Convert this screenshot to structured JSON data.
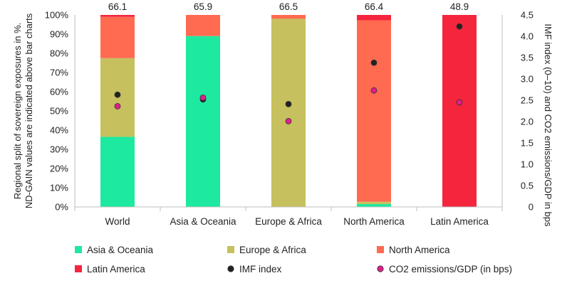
{
  "chart_data": {
    "type": "bar",
    "stacked": true,
    "categories": [
      "World",
      "Asia & Oceania",
      "Europe & Africa",
      "North America",
      "Latin America"
    ],
    "series": [
      {
        "name": "Asia & Oceania",
        "color": "#1de9a0",
        "values": [
          36.5,
          89,
          0,
          1.5,
          0
        ]
      },
      {
        "name": "Europe & Africa",
        "color": "#c6c05e",
        "values": [
          41,
          0,
          98,
          1.2,
          0
        ]
      },
      {
        "name": "North America",
        "color": "#ff6b50",
        "values": [
          21.5,
          11,
          2,
          94.5,
          0
        ]
      },
      {
        "name": "Latin America",
        "color": "#f5253e",
        "values": [
          1,
          0,
          0,
          2.8,
          100
        ]
      }
    ],
    "markers": [
      {
        "name": "IMF index",
        "color": "#222222",
        "values": [
          2.63,
          2.52,
          2.41,
          3.38,
          4.23
        ]
      },
      {
        "name": "CO2 emissions/GDP (in bps)",
        "color": "#e01e8c",
        "values": [
          2.36,
          2.56,
          2.01,
          2.73,
          2.45
        ]
      }
    ],
    "above_bar_labels": [
      "66.1",
      "65.9",
      "66.5",
      "66.4",
      "48.9"
    ],
    "y_left": {
      "label": "Regional split of sovereign exposures in %. ND-GAIN values are indicated above bar charts",
      "label_lines": [
        "Regional split of sovereign exposures in %.",
        "ND-GAIN values are indicated above bar charts"
      ],
      "ylim": [
        0,
        100
      ],
      "ticks": [
        "0%",
        "10%",
        "20%",
        "30%",
        "40%",
        "50%",
        "60%",
        "70%",
        "80%",
        "90%",
        "100%"
      ]
    },
    "y_right": {
      "label": "IMF index (0–10) and CO2 emissions/GDP in bps",
      "ylim": [
        0,
        4.5
      ],
      "ticks": [
        "0",
        "0.5",
        "1.0",
        "1.5",
        "2.0",
        "2.5",
        "3.0",
        "3.5",
        "4.0",
        "4.5"
      ]
    },
    "grid": false,
    "legend_position": "bottom",
    "legend": [
      {
        "label": "Asia & Oceania",
        "symbol": "square",
        "color": "#1de9a0"
      },
      {
        "label": "Europe & Africa",
        "symbol": "square",
        "color": "#c6c05e"
      },
      {
        "label": "North America",
        "symbol": "square",
        "color": "#ff6b50"
      },
      {
        "label": "Latin America",
        "symbol": "square",
        "color": "#f5253e"
      },
      {
        "label": "IMF index",
        "symbol": "circle",
        "color": "#222222"
      },
      {
        "label": "CO2 emissions/GDP (in bps)",
        "symbol": "circle",
        "color": "#e01e8c"
      }
    ]
  }
}
